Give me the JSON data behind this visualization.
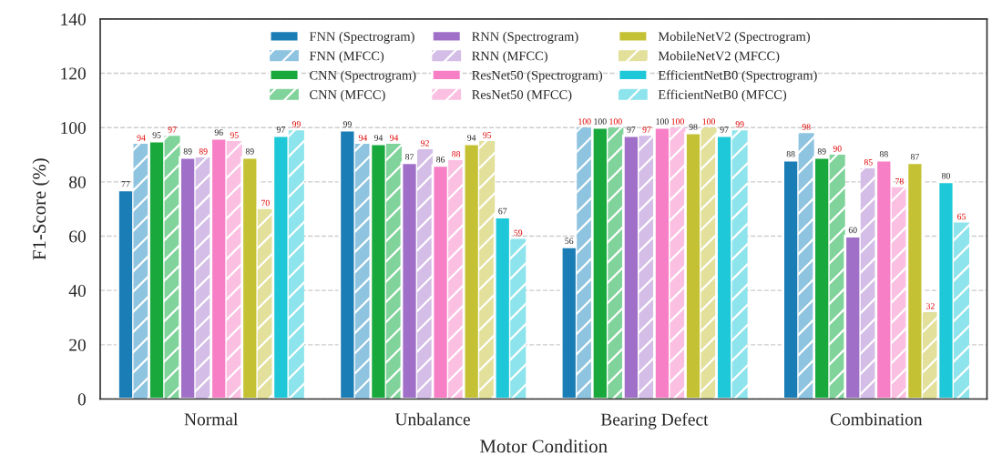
{
  "chart_data": {
    "type": "bar",
    "xlabel": "Motor Condition",
    "ylabel": "F1-Score (%)",
    "categories": [
      "Normal",
      "Unbalance",
      "Bearing Defect",
      "Combination"
    ],
    "series": [
      {
        "name": "FNN (Spectrogram)",
        "color": "#1a7db5",
        "values": [
          77,
          99,
          56,
          88
        ]
      },
      {
        "name": "FNN (MFCC)",
        "color": "#8ec4e0",
        "values": [
          94,
          94,
          100,
          98
        ]
      },
      {
        "name": "CNN (Spectrogram)",
        "color": "#18a83c",
        "values": [
          95,
          94,
          100,
          89
        ]
      },
      {
        "name": "CNN (MFCC)",
        "color": "#80d39a",
        "values": [
          97,
          94,
          100,
          90
        ]
      },
      {
        "name": "RNN (Spectrogram)",
        "color": "#a070c8",
        "values": [
          89,
          87,
          97,
          60
        ]
      },
      {
        "name": "RNN (MFCC)",
        "color": "#d4bde6",
        "values": [
          89,
          92,
          97,
          85
        ]
      },
      {
        "name": "ResNet50 (Spectrogram)",
        "color": "#f77fc6",
        "values": [
          96,
          86,
          100,
          88
        ]
      },
      {
        "name": "ResNet50 (MFCC)",
        "color": "#fbbfe2",
        "values": [
          95,
          88,
          100,
          78
        ]
      },
      {
        "name": "MobileNetV2 (Spectrogram)",
        "color": "#c4c234",
        "values": [
          89,
          94,
          98,
          87
        ]
      },
      {
        "name": "MobileNetV2 (MFCC)",
        "color": "#e2e09a",
        "values": [
          70,
          95,
          100,
          32
        ]
      },
      {
        "name": "EfficientNetB0 (Spectrogram)",
        "color": "#1ec8d8",
        "values": [
          97,
          67,
          97,
          80
        ]
      },
      {
        "name": "EfficientNetB0 (MFCC)",
        "color": "#8ee4ec",
        "values": [
          99,
          59,
          99,
          65
        ]
      }
    ],
    "data_labels": true,
    "ylim": [
      0,
      140
    ],
    "yticks": [
      0,
      20,
      40,
      60,
      80,
      100,
      120,
      140
    ],
    "grid": "y",
    "legend": "top"
  }
}
